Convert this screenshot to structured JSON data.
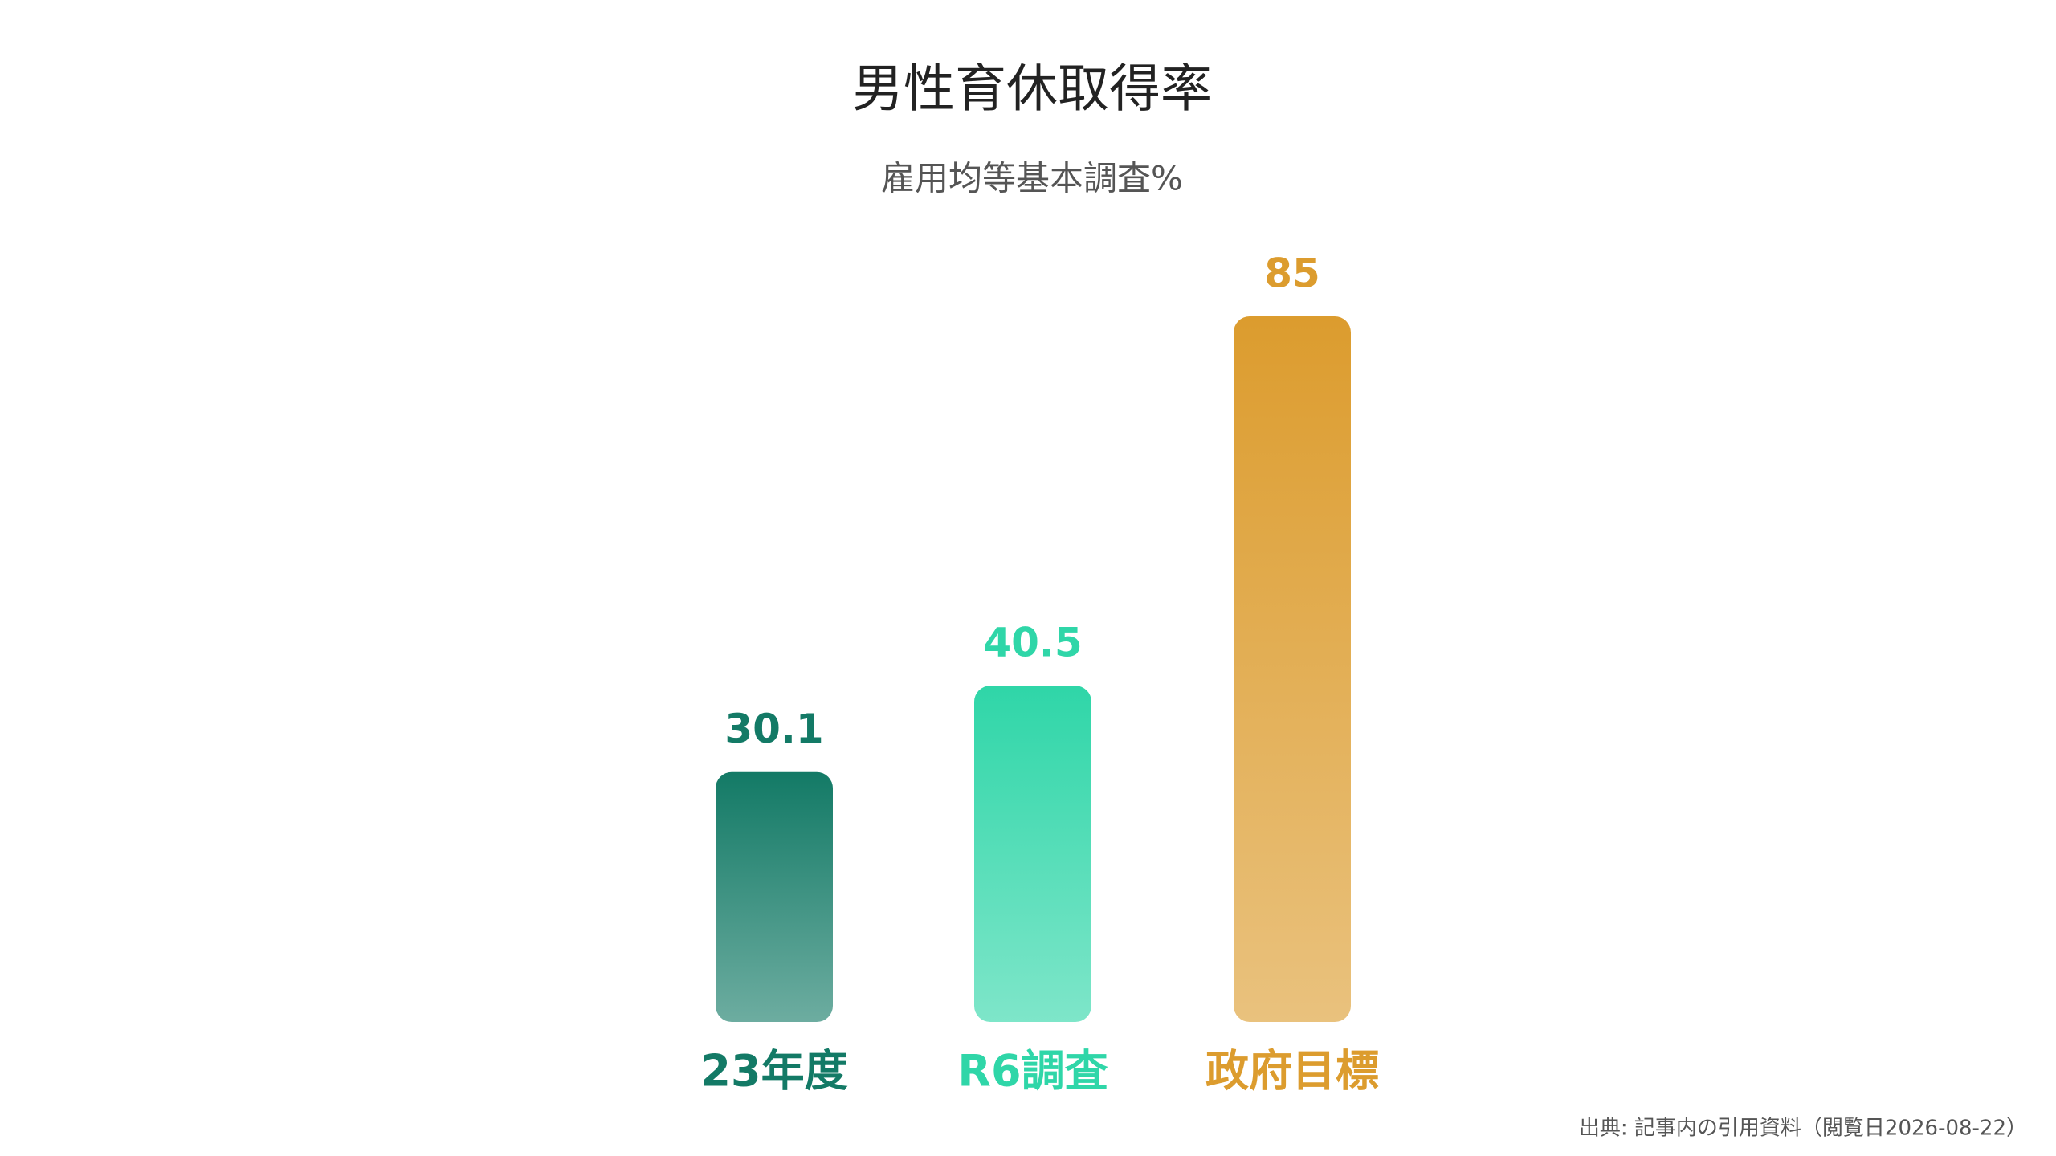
{
  "chart_data": {
    "type": "bar",
    "title": "男性育休取得率",
    "subtitle": "雇用均等基本調査%",
    "categories": [
      "23年度",
      "R6調査",
      "政府目標"
    ],
    "values": [
      30.1,
      40.5,
      85
    ],
    "colors": [
      "#137a66",
      "#2fd6a8",
      "#dc9c2e"
    ],
    "source": "出典: 記事内の引用資料（閲覧日2026-08-22）"
  }
}
